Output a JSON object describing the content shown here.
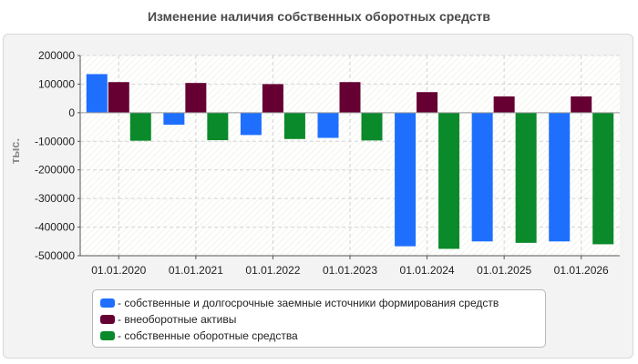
{
  "chart_data": {
    "type": "bar",
    "title": "Изменение наличия собственных оборотных средств",
    "ylabel": "тыс.",
    "xlabel": "",
    "categories": [
      "01.01.2020",
      "01.01.2021",
      "01.01.2022",
      "01.01.2023",
      "01.01.2024",
      "01.01.2025",
      "01.01.2026"
    ],
    "ylim": [
      -500000,
      200000
    ],
    "yticks": [
      200000,
      100000,
      0,
      -100000,
      -200000,
      -300000,
      -400000,
      -500000
    ],
    "grid": true,
    "legend_position": "bottom",
    "series": [
      {
        "name": "собственные и долгосрочные заемные источники формирования средств",
        "color": "#1f6fff",
        "values": [
          135000,
          -42000,
          -78000,
          -88000,
          -467000,
          -450000,
          -450000
        ]
      },
      {
        "name": "внеоборотные активы",
        "color": "#660033",
        "values": [
          107000,
          104000,
          100000,
          107000,
          72000,
          57000,
          57000
        ]
      },
      {
        "name": "собственные оборотные средства",
        "color": "#0a8a2a",
        "values": [
          -98000,
          -96000,
          -92000,
          -97000,
          -476000,
          -455000,
          -460000
        ]
      }
    ]
  }
}
